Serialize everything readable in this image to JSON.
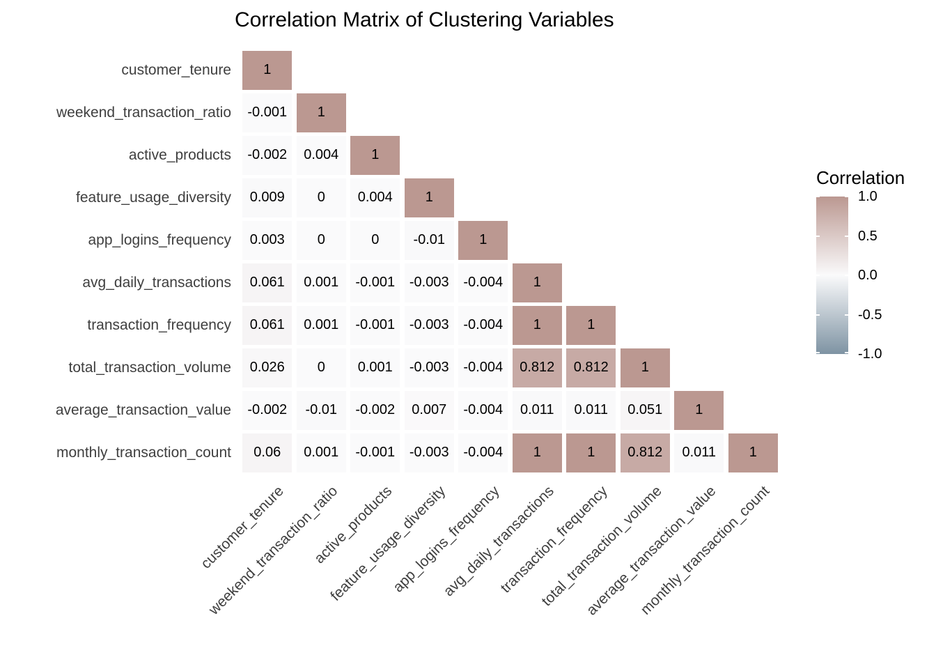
{
  "chart_data": {
    "type": "heatmap",
    "title": "Correlation Matrix of Clustering Variables",
    "variables": [
      "customer_tenure",
      "weekend_transaction_ratio",
      "active_products",
      "feature_usage_diversity",
      "app_logins_frequency",
      "avg_daily_transactions",
      "transaction_frequency",
      "total_transaction_volume",
      "average_transaction_value",
      "monthly_transaction_count"
    ],
    "matrix_lower_triangle": [
      [
        1
      ],
      [
        -0.001,
        1
      ],
      [
        -0.002,
        0.004,
        1
      ],
      [
        0.009,
        0,
        0.004,
        1
      ],
      [
        0.003,
        0,
        0,
        -0.01,
        1
      ],
      [
        0.061,
        0.001,
        -0.001,
        -0.003,
        -0.004,
        1
      ],
      [
        0.061,
        0.001,
        -0.001,
        -0.003,
        -0.004,
        1,
        1
      ],
      [
        0.026,
        0,
        0.001,
        -0.003,
        -0.004,
        0.812,
        0.812,
        1
      ],
      [
        -0.002,
        -0.01,
        -0.002,
        0.007,
        -0.004,
        0.011,
        0.011,
        0.051,
        1
      ],
      [
        0.06,
        0.001,
        -0.001,
        -0.003,
        -0.004,
        1,
        1,
        0.812,
        0.011,
        1
      ]
    ],
    "legend": {
      "title": "Correlation",
      "position": "right",
      "range": [
        -1,
        1
      ],
      "ticks": [
        {
          "label": "1.0",
          "value": 1
        },
        {
          "label": "0.5",
          "value": 0.5
        },
        {
          "label": "0.0",
          "value": 0
        },
        {
          "label": "-0.5",
          "value": -0.5
        },
        {
          "label": "-1.0",
          "value": -1
        }
      ]
    },
    "colors": {
      "high": "#BB9891",
      "mid": "#FAFAFB",
      "low": "#7E93A3",
      "cell_text": "#000000",
      "axis_text": "#3F3F3F",
      "title_text": "#000000",
      "legend_text": "#000000"
    },
    "grid": false,
    "layout_hint": "lower-triangular correlation matrix, x labels rotated 45deg, colorbar legend on right"
  }
}
